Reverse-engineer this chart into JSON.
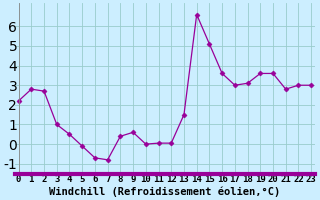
{
  "x": [
    0,
    1,
    2,
    3,
    4,
    5,
    6,
    7,
    8,
    9,
    10,
    11,
    12,
    13,
    14,
    15,
    16,
    17,
    18,
    19,
    20,
    21,
    22,
    23
  ],
  "y": [
    2.2,
    2.8,
    2.7,
    1.0,
    0.5,
    -0.1,
    -0.7,
    -0.8,
    0.4,
    0.6,
    0.0,
    0.05,
    0.05,
    1.5,
    6.6,
    5.1,
    3.6,
    3.0,
    3.1,
    3.6,
    3.6,
    2.8,
    3.0,
    3.0
  ],
  "line_color": "#990099",
  "marker": "D",
  "marker_size": 2.5,
  "bg_color": "#cceeff",
  "grid_color": "#99cccc",
  "xlabel": "Windchill (Refroidissement éolien,°C)",
  "ylim": [
    -1.5,
    7.2
  ],
  "xlim": [
    -0.3,
    23.3
  ],
  "yticks": [
    -1,
    0,
    1,
    2,
    3,
    4,
    5,
    6
  ],
  "xtick_labels": [
    "0",
    "1",
    "2",
    "3",
    "4",
    "5",
    "6",
    "7",
    "8",
    "9",
    "10",
    "11",
    "12",
    "13",
    "14",
    "15",
    "16",
    "17",
    "18",
    "19",
    "20",
    "21",
    "22",
    "23"
  ],
  "label_fontsize": 7.5,
  "tick_fontsize": 6.5,
  "bottom_bar_color": "#990099",
  "spine_color": "#888888"
}
